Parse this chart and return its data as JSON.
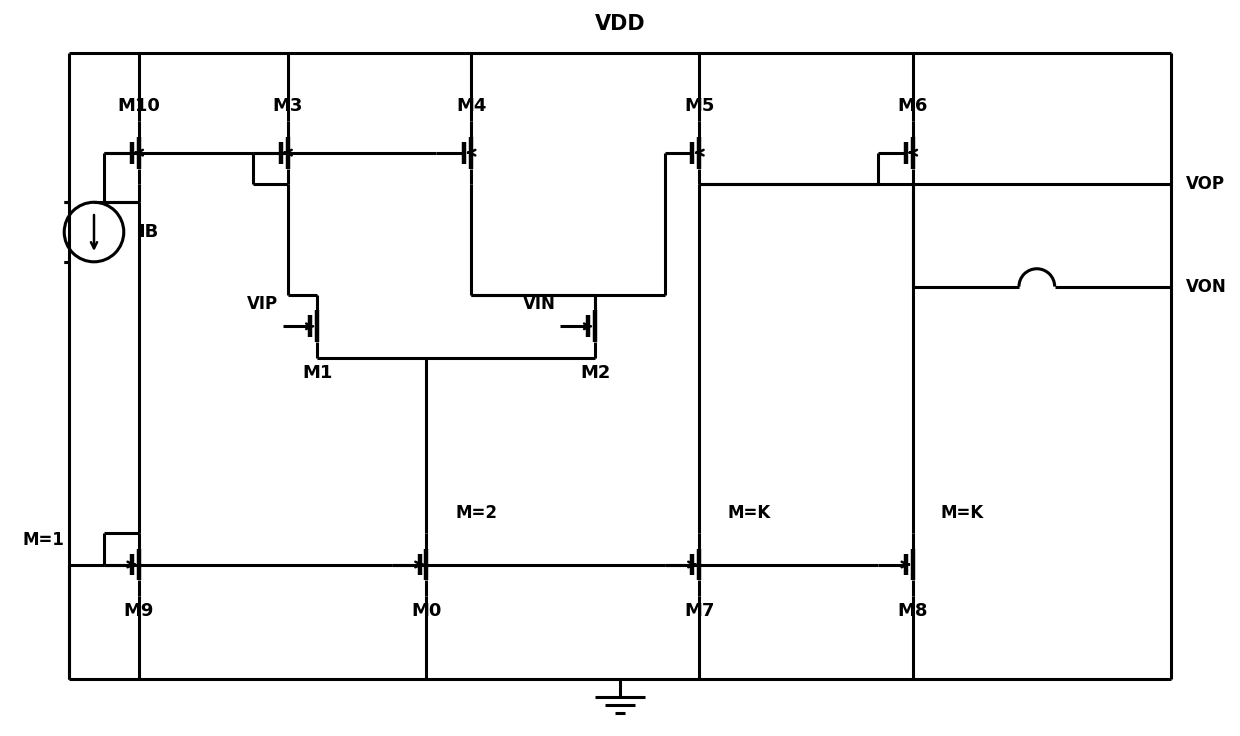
{
  "bg_color": "#ffffff",
  "lw": 2.2,
  "figsize": [
    12.4,
    7.36
  ],
  "dpi": 100,
  "VDD_label": "VDD",
  "VOP_label": "VOP",
  "VON_label": "VON",
  "IB_label": "IB",
  "VIP_label": "VIP",
  "VIN_label": "VIN",
  "labels_pmos": [
    "M10",
    "M3",
    "M4",
    "M5",
    "M6"
  ],
  "labels_nmos_in": [
    "M1",
    "M2"
  ],
  "labels_nmos_bot": [
    "M9",
    "M0",
    "M7",
    "M8"
  ],
  "mult_labels": [
    "M=1",
    "M=2",
    "M=K",
    "M=K"
  ],
  "font_size_label": 13,
  "font_size_mult": 12
}
